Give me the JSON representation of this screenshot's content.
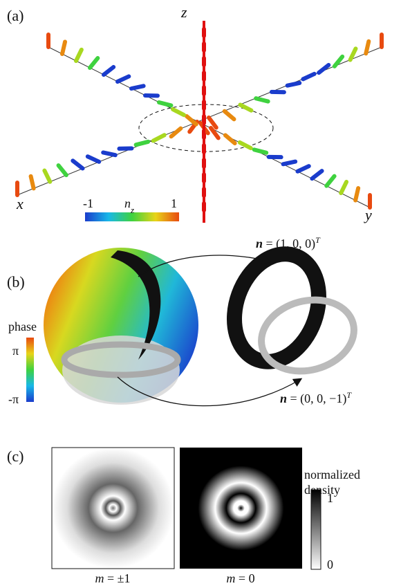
{
  "panel_a": {
    "label": "(a)",
    "axis_z": "z",
    "axis_x": "x",
    "axis_y": "y",
    "colorbar": {
      "symbol": "n",
      "subscript": "z",
      "min_label": "-1",
      "max_label": "1"
    }
  },
  "panel_b": {
    "label": "(b)",
    "colorbar": {
      "title": "phase",
      "max_label": "π",
      "min_label": "-π"
    },
    "annotations": [
      {
        "vector": "n",
        "text": " = (1, 0, 0)",
        "sup": "T"
      },
      {
        "vector": "n",
        "text": " = (0, 0, −1)",
        "sup": "T"
      }
    ]
  },
  "panel_c": {
    "label": "(c)",
    "colorbar": {
      "title_line1": "normalized",
      "title_line2": "density",
      "max_label": "1",
      "min_label": "0"
    },
    "captions": [
      {
        "var": "m",
        "text": " = ±1"
      },
      {
        "var": "m",
        "text": " = 0"
      }
    ]
  }
}
